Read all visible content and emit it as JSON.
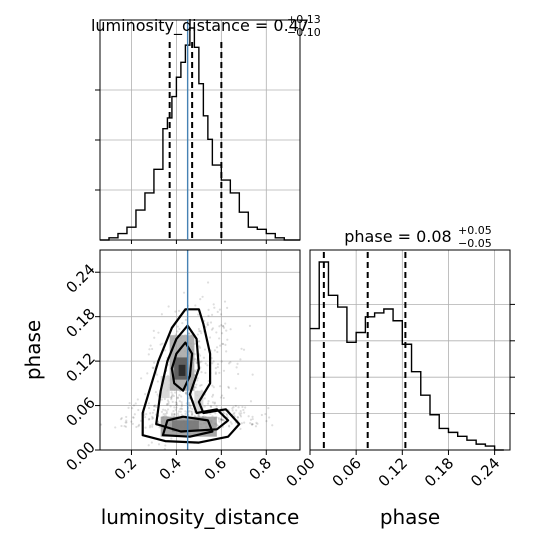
{
  "chart_data": [
    {
      "type": "histogram",
      "panel": "luminosity_distance marginal",
      "title": "luminosity_distance = 0.47^{+0.13}_{-0.10}",
      "title_main": "luminosity_distance = 0.47",
      "title_sup": "+0.13",
      "title_sub": "−0.10",
      "xlim": [
        0.06,
        0.95
      ],
      "bins": [
        0.06,
        0.1,
        0.14,
        0.18,
        0.22,
        0.26,
        0.3,
        0.34,
        0.36,
        0.38,
        0.4,
        0.42,
        0.44,
        0.46,
        0.48,
        0.5,
        0.52,
        0.54,
        0.56,
        0.6,
        0.64,
        0.68,
        0.72,
        0.76,
        0.8,
        0.84,
        0.88,
        0.95
      ],
      "counts": [
        0.0,
        0.01,
        0.03,
        0.06,
        0.14,
        0.22,
        0.33,
        0.52,
        0.57,
        0.67,
        0.76,
        0.83,
        0.91,
        0.99,
        0.9,
        0.73,
        0.58,
        0.47,
        0.35,
        0.28,
        0.22,
        0.13,
        0.06,
        0.05,
        0.03,
        0.01,
        0.0
      ],
      "quantile_lines": [
        0.37,
        0.47,
        0.6
      ],
      "truth": 0.45
    },
    {
      "type": "scatter",
      "panel": "luminosity_distance vs phase",
      "xlabel": "luminosity_distance",
      "ylabel": "phase",
      "xlim": [
        0.06,
        0.95
      ],
      "ylim": [
        0.0,
        0.27
      ],
      "xticks": [
        "0.2",
        "0.4",
        "0.6",
        "0.8"
      ],
      "xtick_values": [
        0.2,
        0.4,
        0.6,
        0.8
      ],
      "yticks": [
        "0.00",
        "0.06",
        "0.12",
        "0.18",
        "0.24"
      ],
      "ytick_values": [
        0.0,
        0.06,
        0.12,
        0.18,
        0.24
      ],
      "truth_x": 0.45,
      "contours": [
        [
          [
            0.25,
            0.02
          ],
          [
            0.35,
            0.012
          ],
          [
            0.5,
            0.01
          ],
          [
            0.63,
            0.018
          ],
          [
            0.68,
            0.035
          ],
          [
            0.62,
            0.055
          ],
          [
            0.52,
            0.05
          ],
          [
            0.5,
            0.065
          ],
          [
            0.55,
            0.09
          ],
          [
            0.55,
            0.13
          ],
          [
            0.52,
            0.17
          ],
          [
            0.5,
            0.19
          ],
          [
            0.44,
            0.19
          ],
          [
            0.38,
            0.165
          ],
          [
            0.32,
            0.12
          ],
          [
            0.28,
            0.08
          ],
          [
            0.25,
            0.05
          ]
        ],
        [
          [
            0.31,
            0.035
          ],
          [
            0.42,
            0.025
          ],
          [
            0.58,
            0.028
          ],
          [
            0.63,
            0.04
          ],
          [
            0.58,
            0.055
          ],
          [
            0.49,
            0.05
          ],
          [
            0.46,
            0.075
          ],
          [
            0.5,
            0.11
          ],
          [
            0.49,
            0.15
          ],
          [
            0.45,
            0.168
          ],
          [
            0.4,
            0.15
          ],
          [
            0.36,
            0.12
          ],
          [
            0.33,
            0.08
          ]
        ],
        [
          [
            0.34,
            0.02
          ],
          [
            0.46,
            0.018
          ],
          [
            0.56,
            0.025
          ],
          [
            0.54,
            0.04
          ],
          [
            0.43,
            0.045
          ],
          [
            0.36,
            0.04
          ]
        ],
        [
          [
            0.39,
            0.09
          ],
          [
            0.43,
            0.08
          ],
          [
            0.46,
            0.1
          ],
          [
            0.47,
            0.13
          ],
          [
            0.44,
            0.145
          ],
          [
            0.4,
            0.13
          ],
          [
            0.38,
            0.11
          ]
        ]
      ],
      "density_cells": [
        {
          "x": [
            0.33,
            0.58
          ],
          "y": [
            0.018,
            0.045
          ],
          "v": 0.45
        },
        {
          "x": [
            0.38,
            0.5
          ],
          "y": [
            0.025,
            0.04
          ],
          "v": 0.6
        },
        {
          "x": [
            0.37,
            0.48
          ],
          "y": [
            0.08,
            0.155
          ],
          "v": 0.4
        },
        {
          "x": [
            0.39,
            0.45
          ],
          "y": [
            0.095,
            0.125
          ],
          "v": 0.75
        },
        {
          "x": [
            0.41,
            0.44
          ],
          "y": [
            0.1,
            0.115
          ],
          "v": 0.95
        },
        {
          "x": [
            0.33,
            0.37
          ],
          "y": [
            0.07,
            0.1
          ],
          "v": 0.2
        },
        {
          "x": [
            0.48,
            0.52
          ],
          "y": [
            0.05,
            0.08
          ],
          "v": 0.2
        }
      ]
    },
    {
      "type": "histogram",
      "panel": "phase marginal",
      "title": "phase = 0.08^{+0.05}_{-0.05}",
      "title_main": "phase = 0.08",
      "title_sup": "+0.05",
      "title_sub": "−0.05",
      "xlabel": "phase",
      "xlim": [
        0.0,
        0.26
      ],
      "xticks": [
        "0.00",
        "0.06",
        "0.12",
        "0.18",
        "0.24"
      ],
      "xtick_values": [
        0.0,
        0.06,
        0.12,
        0.18,
        0.24
      ],
      "bins": [
        0.0,
        0.012,
        0.024,
        0.036,
        0.048,
        0.06,
        0.072,
        0.084,
        0.096,
        0.108,
        0.12,
        0.132,
        0.144,
        0.156,
        0.168,
        0.18,
        0.192,
        0.204,
        0.216,
        0.228,
        0.24,
        0.252
      ],
      "counts": [
        0.62,
        0.96,
        0.79,
        0.73,
        0.55,
        0.6,
        0.68,
        0.7,
        0.72,
        0.66,
        0.54,
        0.4,
        0.28,
        0.18,
        0.11,
        0.09,
        0.07,
        0.05,
        0.03,
        0.02,
        0.0
      ],
      "quantile_lines": [
        0.018,
        0.075,
        0.124
      ]
    }
  ]
}
